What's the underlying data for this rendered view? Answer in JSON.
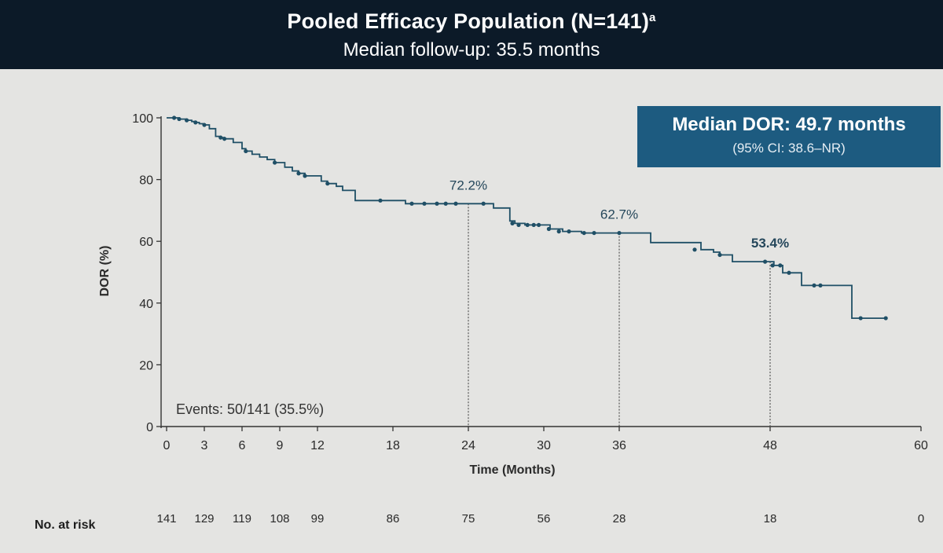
{
  "header": {
    "title": "Pooled Efficacy Population (N=141)",
    "title_sup": "a",
    "subtitle": "Median follow-up: 35.5 months"
  },
  "median_box": {
    "line1": "Median DOR: 49.7 months",
    "line2": "(95% CI: 38.6–NR)"
  },
  "events_text": "Events: 50/141 (35.5%)",
  "risk_table": {
    "label": "No. at risk",
    "times": [
      0,
      3,
      6,
      9,
      12,
      18,
      24,
      30,
      36,
      48,
      60
    ],
    "values": [
      "141",
      "129",
      "119",
      "108",
      "99",
      "86",
      "75",
      "56",
      "28",
      "18",
      "0"
    ]
  },
  "colors": {
    "curve": "#1f4f66",
    "header_bg": "#0c1a28",
    "box_bg": "#1d5b80",
    "background": "#e4e4e2"
  },
  "chart_data": {
    "type": "line",
    "title": "Pooled Efficacy Population (N=141)",
    "xlabel": "Time (Months)",
    "ylabel": "DOR (%)",
    "xlim": [
      0,
      60
    ],
    "ylim": [
      0,
      100
    ],
    "x_ticks": [
      0,
      3,
      6,
      9,
      12,
      18,
      24,
      30,
      36,
      48,
      60
    ],
    "x_tick_labels": [
      "0",
      "3",
      "6",
      "9",
      "12",
      "18",
      "24",
      "30",
      "36",
      "48",
      "60"
    ],
    "y_ticks": [
      0,
      20,
      40,
      60,
      80,
      100
    ],
    "y_tick_labels": [
      "0",
      "20",
      "40",
      "60",
      "80",
      "100"
    ],
    "grid": false,
    "series": [
      {
        "step_x": [
          0,
          0.6,
          1.0,
          1.3,
          1.6,
          2.0,
          2.3,
          2.6,
          3.0,
          3.4,
          3.9,
          4.3,
          4.6,
          5.3,
          6.0,
          6.3,
          6.8,
          7.4,
          8.0,
          8.6,
          9.4,
          10.0,
          10.5,
          11.0,
          12.3,
          12.8,
          13.5,
          14.0,
          15.0,
          16.0,
          17.5,
          19.0,
          21.0,
          23.0,
          24.5,
          26.0,
          27.3,
          27.7,
          28.5,
          30.5,
          31.5,
          33.0,
          33.5,
          36.0,
          38.5,
          40.0,
          42.5,
          43.5,
          44.0,
          45.0,
          47.5,
          48.3,
          49.0,
          50.5,
          52.5,
          54.5,
          55.0,
          57.2
        ],
        "step_y": [
          100,
          100,
          99.6,
          99.6,
          99.2,
          98.8,
          98.5,
          98.1,
          97.7,
          96.5,
          94.0,
          93.6,
          93.2,
          92.0,
          90.0,
          89.2,
          88.2,
          87.3,
          86.5,
          85.5,
          84.0,
          82.8,
          82.0,
          81.2,
          79.5,
          78.7,
          77.8,
          76.5,
          73.2,
          73.2,
          73.2,
          72.2,
          72.2,
          72.2,
          72.2,
          70.8,
          66.6,
          65.8,
          65.3,
          64.0,
          63.2,
          62.7,
          62.7,
          62.7,
          59.6,
          59.6,
          57.3,
          56.5,
          55.6,
          53.4,
          53.4,
          52.2,
          49.8,
          45.7,
          45.7,
          35.1,
          35.1,
          35.1
        ],
        "censor_x": [
          0.6,
          1.0,
          1.6,
          2.3,
          3.0,
          4.3,
          4.6,
          6.3,
          8.6,
          10.5,
          11.0,
          12.8,
          17.0,
          19.5,
          20.5,
          21.5,
          22.2,
          23.0,
          25.2,
          27.5,
          28.0,
          28.7,
          29.2,
          29.6,
          30.4,
          31.2,
          32.0,
          33.2,
          34.0,
          36.0,
          42.0,
          44.0,
          47.6,
          48.2,
          48.8,
          49.5,
          51.5,
          52.0,
          55.2,
          57.2
        ],
        "censor_y": [
          100,
          99.6,
          99.2,
          98.5,
          97.7,
          93.6,
          93.2,
          89.2,
          85.5,
          82.0,
          81.2,
          78.7,
          73.2,
          72.2,
          72.2,
          72.2,
          72.2,
          72.2,
          72.2,
          65.8,
          65.3,
          65.3,
          65.3,
          65.3,
          64.0,
          63.2,
          63.2,
          62.7,
          62.7,
          62.7,
          57.3,
          55.6,
          53.4,
          52.2,
          52.2,
          49.8,
          45.7,
          45.7,
          35.1,
          35.1
        ]
      }
    ],
    "annotations": [
      {
        "x": 24,
        "y": 72.2,
        "label": "72.2%"
      },
      {
        "x": 36,
        "y": 62.7,
        "label": "62.7%"
      },
      {
        "x": 48,
        "y": 53.4,
        "label": "53.4%"
      }
    ]
  }
}
